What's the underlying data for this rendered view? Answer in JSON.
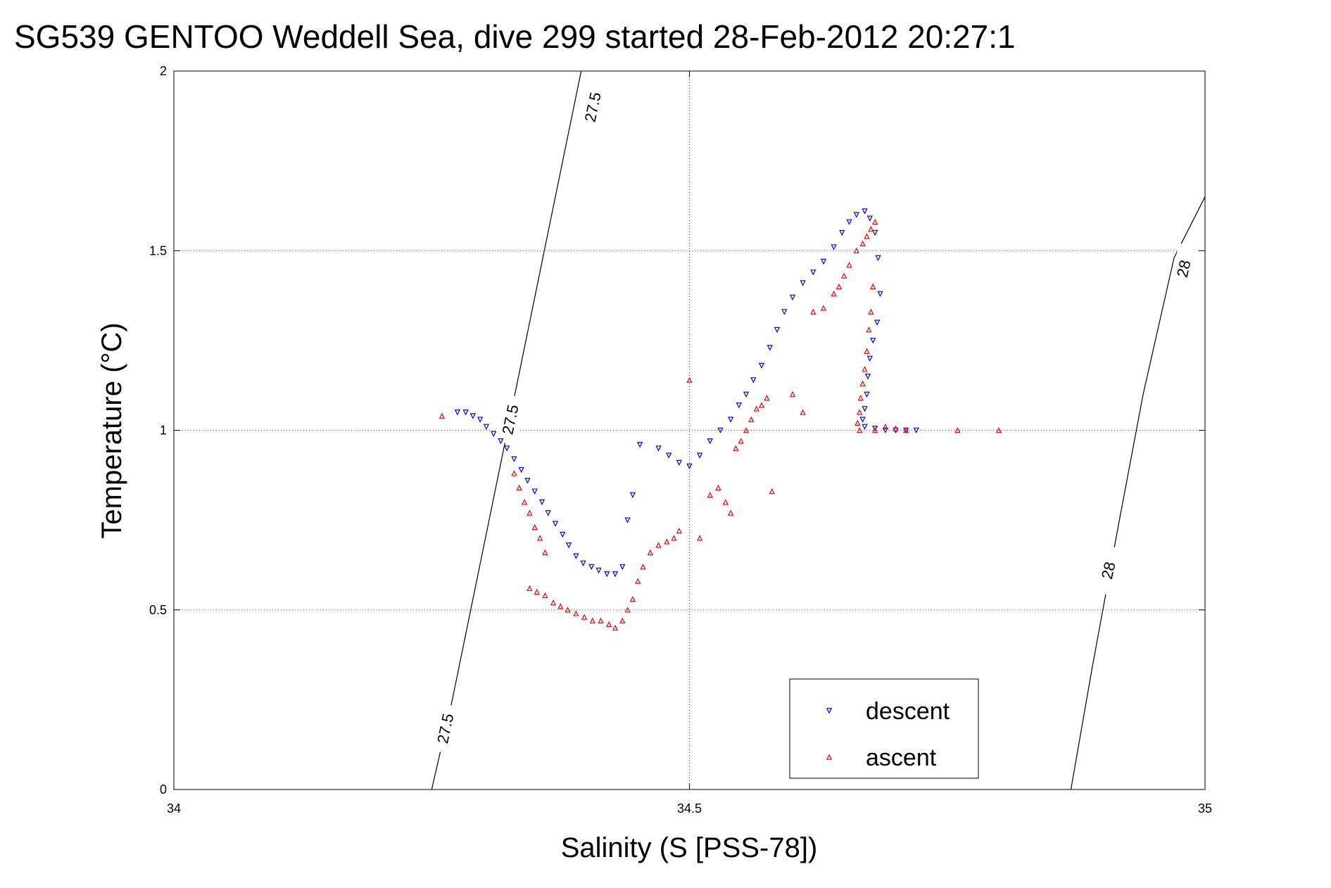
{
  "chart_data": {
    "type": "scatter",
    "title": "SG539 GENTOO Weddell Sea, dive 299 started 28-Feb-2012 20:27:1",
    "xlabel": "Salinity (S [PSS-78])",
    "ylabel": "Temperature (°C)",
    "xlim": [
      34,
      35
    ],
    "ylim": [
      0,
      2
    ],
    "xticks": [
      34,
      34.5,
      35
    ],
    "xtick_labels": [
      "34",
      "34.5",
      "35"
    ],
    "yticks": [
      0,
      0.5,
      1,
      1.5,
      2
    ],
    "ytick_labels": [
      "0",
      "0.5",
      "1",
      "1.5",
      "2"
    ],
    "grid": true,
    "legend": {
      "position": "bottom-right",
      "entries": [
        "descent",
        "ascent"
      ]
    },
    "series": [
      {
        "name": "descent",
        "marker": "triangle-down",
        "color": "#0000ff",
        "points": [
          [
            34.275,
            1.05
          ],
          [
            34.283,
            1.05
          ],
          [
            34.29,
            1.04
          ],
          [
            34.297,
            1.03
          ],
          [
            34.303,
            1.01
          ],
          [
            34.31,
            0.99
          ],
          [
            34.317,
            0.97
          ],
          [
            34.323,
            0.95
          ],
          [
            34.33,
            0.92
          ],
          [
            34.337,
            0.89
          ],
          [
            34.343,
            0.86
          ],
          [
            34.35,
            0.83
          ],
          [
            34.357,
            0.8
          ],
          [
            34.363,
            0.77
          ],
          [
            34.37,
            0.74
          ],
          [
            34.377,
            0.71
          ],
          [
            34.383,
            0.68
          ],
          [
            34.39,
            0.65
          ],
          [
            34.397,
            0.63
          ],
          [
            34.405,
            0.62
          ],
          [
            34.412,
            0.61
          ],
          [
            34.42,
            0.6
          ],
          [
            34.428,
            0.6
          ],
          [
            34.435,
            0.62
          ],
          [
            34.44,
            0.75
          ],
          [
            34.445,
            0.82
          ],
          [
            34.452,
            0.96
          ],
          [
            34.47,
            0.95
          ],
          [
            34.48,
            0.93
          ],
          [
            34.49,
            0.91
          ],
          [
            34.5,
            0.9
          ],
          [
            34.51,
            0.93
          ],
          [
            34.52,
            0.97
          ],
          [
            34.53,
            1.0
          ],
          [
            34.54,
            1.03
          ],
          [
            34.548,
            1.07
          ],
          [
            34.555,
            1.1
          ],
          [
            34.562,
            1.14
          ],
          [
            34.57,
            1.18
          ],
          [
            34.578,
            1.23
          ],
          [
            34.585,
            1.28
          ],
          [
            34.592,
            1.33
          ],
          [
            34.6,
            1.37
          ],
          [
            34.61,
            1.41
          ],
          [
            34.62,
            1.44
          ],
          [
            34.63,
            1.47
          ],
          [
            34.64,
            1.51
          ],
          [
            34.648,
            1.55
          ],
          [
            34.655,
            1.58
          ],
          [
            34.662,
            1.6
          ],
          [
            34.67,
            1.61
          ],
          [
            34.675,
            1.59
          ],
          [
            34.68,
            1.55
          ],
          [
            34.683,
            1.48
          ],
          [
            34.685,
            1.38
          ],
          [
            34.682,
            1.3
          ],
          [
            34.678,
            1.25
          ],
          [
            34.675,
            1.2
          ],
          [
            34.673,
            1.15
          ],
          [
            34.672,
            1.1
          ],
          [
            34.67,
            1.06
          ],
          [
            34.668,
            1.03
          ],
          [
            34.67,
            1.01
          ],
          [
            34.68,
            1.005
          ],
          [
            34.69,
            1.0
          ],
          [
            34.7,
            1.0
          ],
          [
            34.71,
            1.0
          ],
          [
            34.72,
            1.0
          ]
        ]
      },
      {
        "name": "ascent",
        "marker": "triangle-up",
        "color": "#ff0000",
        "points": [
          [
            34.26,
            1.04
          ],
          [
            34.33,
            0.88
          ],
          [
            34.335,
            0.84
          ],
          [
            34.34,
            0.8
          ],
          [
            34.345,
            0.77
          ],
          [
            34.35,
            0.73
          ],
          [
            34.355,
            0.7
          ],
          [
            34.36,
            0.66
          ],
          [
            34.345,
            0.56
          ],
          [
            34.352,
            0.55
          ],
          [
            34.36,
            0.54
          ],
          [
            34.368,
            0.52
          ],
          [
            34.375,
            0.51
          ],
          [
            34.382,
            0.5
          ],
          [
            34.39,
            0.49
          ],
          [
            34.398,
            0.48
          ],
          [
            34.406,
            0.47
          ],
          [
            34.414,
            0.47
          ],
          [
            34.422,
            0.46
          ],
          [
            34.428,
            0.45
          ],
          [
            34.435,
            0.47
          ],
          [
            34.44,
            0.5
          ],
          [
            34.445,
            0.53
          ],
          [
            34.45,
            0.58
          ],
          [
            34.455,
            0.62
          ],
          [
            34.462,
            0.66
          ],
          [
            34.47,
            0.68
          ],
          [
            34.478,
            0.69
          ],
          [
            34.485,
            0.7
          ],
          [
            34.49,
            0.72
          ],
          [
            34.5,
            1.14
          ],
          [
            34.51,
            0.7
          ],
          [
            34.52,
            0.82
          ],
          [
            34.528,
            0.84
          ],
          [
            34.535,
            0.8
          ],
          [
            34.54,
            0.77
          ],
          [
            34.545,
            0.95
          ],
          [
            34.55,
            0.97
          ],
          [
            34.555,
            1.0
          ],
          [
            34.56,
            1.03
          ],
          [
            34.565,
            1.06
          ],
          [
            34.57,
            1.07
          ],
          [
            34.575,
            1.09
          ],
          [
            34.58,
            0.83
          ],
          [
            34.6,
            1.1
          ],
          [
            34.61,
            1.05
          ],
          [
            34.62,
            1.33
          ],
          [
            34.63,
            1.34
          ],
          [
            34.64,
            1.38
          ],
          [
            34.645,
            1.4
          ],
          [
            34.65,
            1.43
          ],
          [
            34.655,
            1.46
          ],
          [
            34.662,
            1.5
          ],
          [
            34.668,
            1.52
          ],
          [
            34.672,
            1.54
          ],
          [
            34.676,
            1.56
          ],
          [
            34.68,
            1.58
          ],
          [
            34.678,
            1.4
          ],
          [
            34.676,
            1.33
          ],
          [
            34.674,
            1.28
          ],
          [
            34.672,
            1.22
          ],
          [
            34.67,
            1.17
          ],
          [
            34.668,
            1.13
          ],
          [
            34.666,
            1.09
          ],
          [
            34.665,
            1.05
          ],
          [
            34.663,
            1.02
          ],
          [
            34.665,
            1.0
          ],
          [
            34.68,
            1.0
          ],
          [
            34.69,
            1.01
          ],
          [
            34.7,
            1.005
          ],
          [
            34.71,
            1.0
          ],
          [
            34.76,
            1.0
          ],
          [
            34.8,
            1.0
          ]
        ]
      }
    ],
    "density_contours": [
      {
        "label": "27.5",
        "points": [
          [
            34.25,
            0.0
          ],
          [
            34.27,
            0.25
          ],
          [
            34.295,
            0.6
          ],
          [
            34.32,
            0.95
          ],
          [
            34.345,
            1.3
          ],
          [
            34.37,
            1.65
          ],
          [
            34.395,
            2.0
          ]
        ],
        "label_positions": [
          [
            34.263,
            0.17
          ],
          [
            34.326,
            1.03
          ],
          [
            34.406,
            1.9
          ]
        ]
      },
      {
        "label": "28",
        "points": [
          [
            34.87,
            0.0
          ],
          [
            34.89,
            0.33
          ],
          [
            34.915,
            0.72
          ],
          [
            34.94,
            1.1
          ],
          [
            34.97,
            1.48
          ],
          [
            35.0,
            1.65
          ]
        ],
        "label_positions": [
          [
            34.906,
            0.61
          ],
          [
            34.979,
            1.45
          ]
        ]
      }
    ]
  }
}
